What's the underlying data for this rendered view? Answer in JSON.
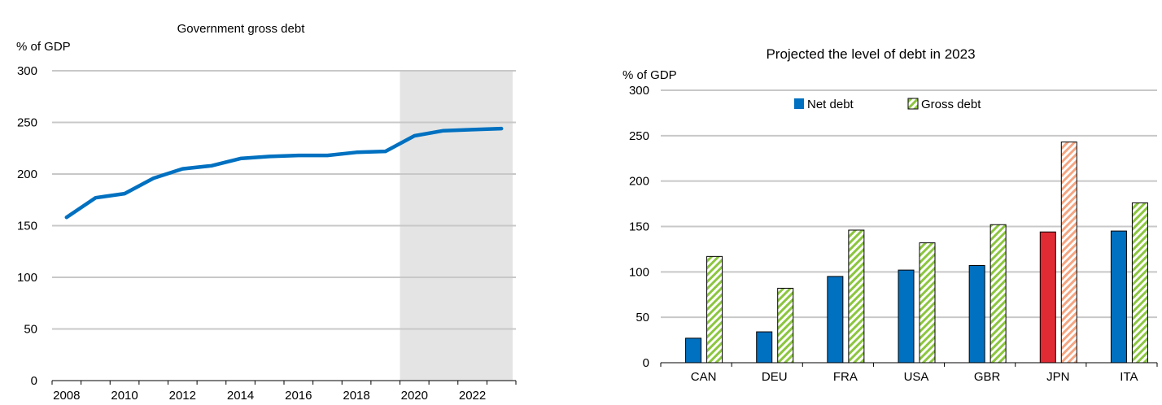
{
  "chart_data": [
    {
      "type": "line",
      "title": "Government gross debt",
      "unit_label": "% of GDP",
      "ylim": [
        0,
        300
      ],
      "yticks": [
        0,
        50,
        100,
        150,
        200,
        250,
        300
      ],
      "xlim": [
        2007.5,
        2023.5
      ],
      "xticks": [
        2008,
        2010,
        2012,
        2014,
        2016,
        2018,
        2020,
        2022
      ],
      "shaded_region": [
        2019.5,
        2023.5
      ],
      "grid": true,
      "series": [
        {
          "x": [
            2008,
            2009,
            2010,
            2011,
            2012,
            2013,
            2014,
            2015,
            2016,
            2017,
            2018,
            2019,
            2020,
            2021,
            2022,
            2023
          ],
          "values": [
            158,
            177,
            181,
            196,
            205,
            208,
            215,
            217,
            218,
            218,
            221,
            222,
            237,
            242,
            243,
            244
          ],
          "color": "#0070c0"
        }
      ]
    },
    {
      "type": "bar",
      "title": "Projected the level of debt in 2023",
      "unit_label": "% of GDP",
      "ylim": [
        0,
        300
      ],
      "yticks": [
        0,
        50,
        100,
        150,
        200,
        250,
        300
      ],
      "categories": [
        "CAN",
        "DEU",
        "FRA",
        "USA",
        "GBR",
        "JPN",
        "ITA"
      ],
      "grid": true,
      "legend_position": "top",
      "series": [
        {
          "name": "Net debt",
          "values": [
            27,
            34,
            95,
            102,
            107,
            144,
            145
          ],
          "color": "#0070c0",
          "highlight": {
            "category": "JPN",
            "color": "#e02b35"
          }
        },
        {
          "name": "Gross debt",
          "values": [
            117,
            82,
            146,
            132,
            152,
            243,
            176
          ],
          "color": "#8cc63f",
          "pattern": "diagonal-hatch",
          "highlight": {
            "category": "JPN",
            "color": "#f4a582"
          }
        }
      ]
    }
  ]
}
